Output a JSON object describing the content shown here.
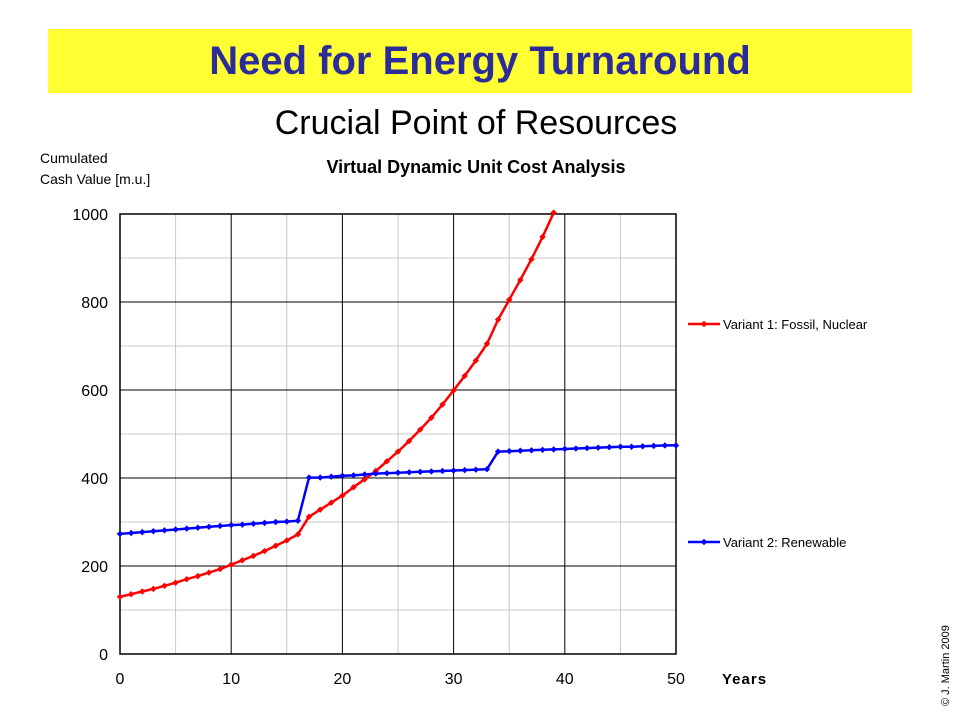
{
  "header": {
    "title": "Need for Energy Turnaround"
  },
  "subtitle": "Crucial Point of Resources",
  "copyright": "© J. Martin 2009",
  "colors": {
    "banner": "#ffff33",
    "title_text": "#2b2b9a",
    "variant1": "#ff0000",
    "variant2": "#0000ff"
  },
  "chart_data": {
    "type": "line",
    "title": "Virtual Dynamic Unit Cost Analysis",
    "ylabel_line1": "Cumulated",
    "ylabel_line2": "Cash Value [m.u.]",
    "xlabel": "Years",
    "xlim": [
      0,
      50
    ],
    "ylim": [
      0,
      1000
    ],
    "xticks": [
      "0",
      "10",
      "20",
      "30",
      "40",
      "50"
    ],
    "yticks": [
      "0",
      "200",
      "400",
      "600",
      "800",
      "1000"
    ],
    "grid": true,
    "legend_position": "right",
    "series": [
      {
        "name": "Variant 1: Fossil, Nuclear",
        "color": "#ff0000",
        "x": [
          0,
          1,
          2,
          3,
          4,
          5,
          6,
          7,
          8,
          9,
          10,
          11,
          12,
          13,
          14,
          15,
          16,
          17,
          18,
          19,
          20,
          21,
          22,
          23,
          24,
          25,
          26,
          27,
          28,
          29,
          30,
          31,
          32,
          33,
          34,
          35,
          36,
          37,
          38,
          39
        ],
        "values": [
          130,
          136,
          142,
          148,
          155,
          162,
          170,
          177,
          185,
          193,
          203,
          213,
          223,
          234,
          246,
          258,
          272,
          312,
          328,
          344,
          360,
          379,
          397,
          416,
          438,
          460,
          484,
          510,
          537,
          567,
          599,
          632,
          667,
          705,
          760,
          805,
          850,
          897,
          948,
          1003
        ]
      },
      {
        "name": "Variant 2: Renewable",
        "color": "#0000ff",
        "x": [
          0,
          1,
          2,
          3,
          4,
          5,
          6,
          7,
          8,
          9,
          10,
          11,
          12,
          13,
          14,
          15,
          16,
          17,
          18,
          19,
          20,
          21,
          22,
          23,
          24,
          25,
          26,
          27,
          28,
          29,
          30,
          31,
          32,
          33,
          34,
          35,
          36,
          37,
          38,
          39,
          40,
          41,
          42,
          43,
          44,
          45,
          46,
          47,
          48,
          49,
          50
        ],
        "values": [
          273,
          275,
          277,
          279,
          281,
          283,
          285,
          287,
          289,
          291,
          293,
          294,
          296,
          298,
          300,
          301,
          303,
          401,
          401,
          403,
          405,
          406,
          408,
          410,
          411,
          412,
          413,
          414,
          415,
          416,
          417,
          418,
          419,
          420,
          460,
          461,
          462,
          463,
          464,
          465,
          466,
          467,
          468,
          469,
          470,
          471,
          471,
          472,
          473,
          474,
          474
        ]
      }
    ]
  }
}
